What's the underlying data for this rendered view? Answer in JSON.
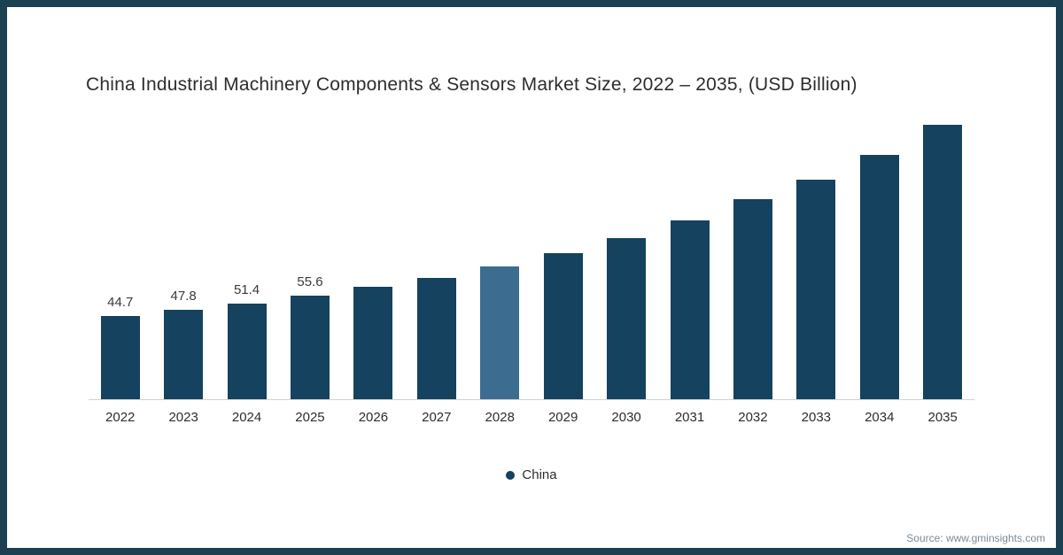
{
  "frame": {
    "border_color": "#1a4052",
    "background": "#ffffff"
  },
  "chart_data": {
    "type": "bar",
    "title": "China Industrial Machinery Components & Sensors Market Size, 2022 – 2035, (USD Billion)",
    "xlabel": "",
    "ylabel": "",
    "categories": [
      "2022",
      "2023",
      "2024",
      "2025",
      "2026",
      "2027",
      "2028",
      "2029",
      "2030",
      "2031",
      "2032",
      "2033",
      "2034",
      "2035"
    ],
    "series": [
      {
        "name": "China",
        "values": [
          44.7,
          47.8,
          51.4,
          55.6,
          60.3,
          65.3,
          71.5,
          78.3,
          86.5,
          96.0,
          107.5,
          118.0,
          131.2,
          147.5
        ]
      }
    ],
    "value_labels": [
      "44.7",
      "47.8",
      "51.4",
      "55.6",
      "",
      "",
      "",
      "",
      "",
      "",
      "",
      "",
      "",
      ""
    ],
    "highlight_index": 6,
    "bar_color": "#14425f",
    "highlight_color": "#3c6d91",
    "grid": false,
    "ylim": [
      0,
      155
    ],
    "legend": {
      "position": "bottom",
      "items": [
        {
          "label": "China",
          "color": "#14425f"
        }
      ]
    }
  },
  "footer": {
    "source": "Source: www.gminsights.com"
  }
}
